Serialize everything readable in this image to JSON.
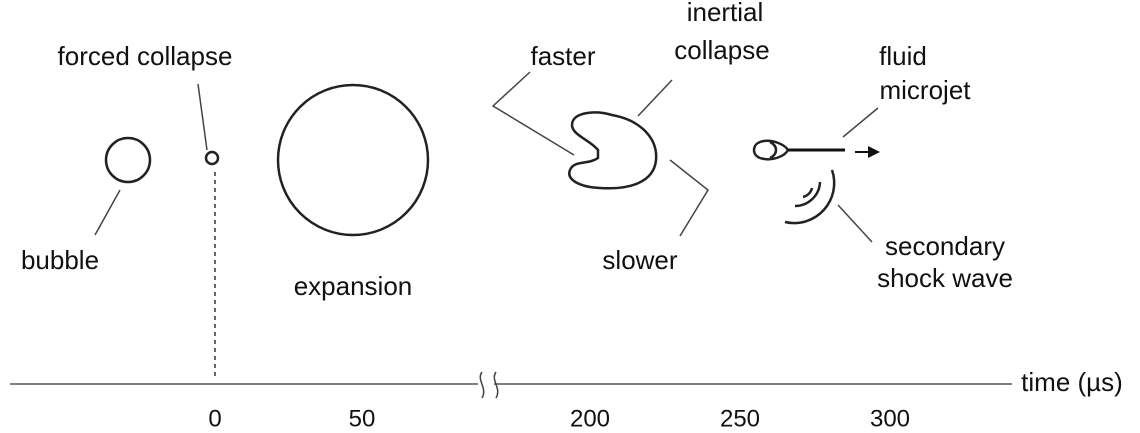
{
  "labels": {
    "bubble": "bubble",
    "forced_collapse": "forced collapse",
    "expansion": "expansion",
    "faster": "faster",
    "inertial_collapse": [
      "inertial",
      "collapse"
    ],
    "slower": "slower",
    "fluid_microjet": [
      "fluid",
      "microjet"
    ],
    "secondary_shock_wave": [
      "secondary",
      "shock wave"
    ]
  },
  "axis": {
    "label": "time (µs)",
    "ticks": [
      0,
      50,
      200,
      250,
      300
    ]
  }
}
